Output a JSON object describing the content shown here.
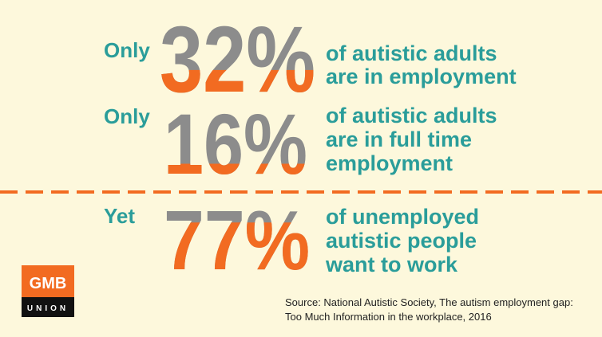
{
  "stats": [
    {
      "prefix": "Only",
      "value": 32,
      "label": "32%",
      "lines": [
        "of autistic adults",
        "are in employment"
      ]
    },
    {
      "prefix": "Only",
      "value": 16,
      "label": "16%",
      "lines": [
        "of autistic adults",
        "are in full time",
        "employment"
      ]
    },
    {
      "prefix": "Yet",
      "value": 77,
      "label": "77%",
      "lines": [
        "of unemployed",
        "autistic people",
        "want to work"
      ]
    }
  ],
  "logo": {
    "name": "GMB",
    "subtitle": "UNION"
  },
  "source": [
    "Source: National Autistic Society, The autism employment gap:",
    "Too Much Information in the workplace, 2016"
  ]
}
